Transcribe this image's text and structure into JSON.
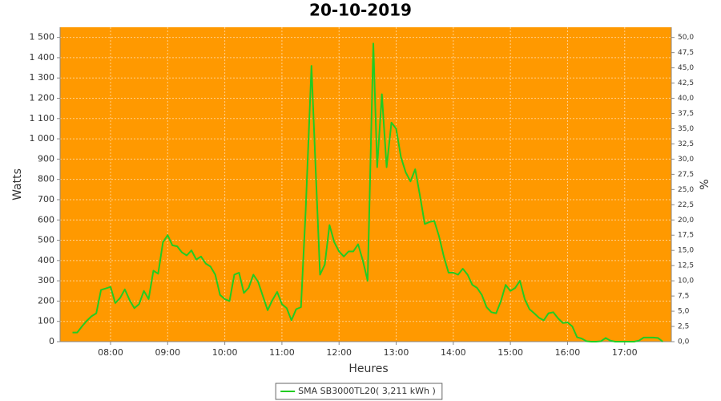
{
  "chart_data": {
    "type": "line",
    "title": "20-10-2019",
    "x_label": "Heures",
    "y_label": "Watts",
    "y2_label": "%",
    "plot_background": "#ff9900",
    "grid": true,
    "x": [
      "07:20",
      "07:25",
      "07:30",
      "07:35",
      "07:40",
      "07:45",
      "07:50",
      "07:55",
      "08:00",
      "08:05",
      "08:10",
      "08:15",
      "08:20",
      "08:25",
      "08:30",
      "08:35",
      "08:40",
      "08:45",
      "08:50",
      "08:55",
      "09:00",
      "09:05",
      "09:10",
      "09:15",
      "09:20",
      "09:25",
      "09:30",
      "09:35",
      "09:40",
      "09:45",
      "09:50",
      "09:55",
      "10:00",
      "10:05",
      "10:10",
      "10:15",
      "10:20",
      "10:25",
      "10:30",
      "10:35",
      "10:40",
      "10:45",
      "10:50",
      "10:55",
      "11:00",
      "11:05",
      "11:10",
      "11:15",
      "11:20",
      "11:25",
      "11:31",
      "11:35",
      "11:40",
      "11:45",
      "11:50",
      "11:55",
      "12:00",
      "12:05",
      "12:10",
      "12:15",
      "12:20",
      "12:25",
      "12:30",
      "12:36",
      "12:40",
      "12:45",
      "12:50",
      "12:55",
      "13:00",
      "13:05",
      "13:10",
      "13:15",
      "13:20",
      "13:25",
      "13:30",
      "13:35",
      "13:40",
      "13:45",
      "13:50",
      "13:55",
      "14:00",
      "14:05",
      "14:10",
      "14:15",
      "14:20",
      "14:25",
      "14:30",
      "14:35",
      "14:40",
      "14:45",
      "14:50",
      "14:55",
      "15:00",
      "15:05",
      "15:10",
      "15:15",
      "15:20",
      "15:25",
      "15:30",
      "15:35",
      "15:40",
      "15:45",
      "15:50",
      "15:55",
      "16:00",
      "16:05",
      "16:10",
      "16:15",
      "16:20",
      "16:25",
      "16:30",
      "16:35",
      "16:40",
      "16:45",
      "16:50",
      "16:55",
      "17:00",
      "17:05",
      "17:10",
      "17:15",
      "17:20",
      "17:25",
      "17:30",
      "17:35",
      "17:40"
    ],
    "series": [
      {
        "name": "SMA SB3000TL20( 3,211 kWh )",
        "color": "#22cc22",
        "values": [
          45,
          45,
          75,
          103,
          125,
          140,
          255,
          262,
          270,
          190,
          215,
          258,
          205,
          165,
          185,
          250,
          210,
          350,
          335,
          490,
          525,
          475,
          470,
          440,
          425,
          450,
          405,
          420,
          385,
          370,
          330,
          230,
          210,
          200,
          330,
          340,
          240,
          265,
          330,
          295,
          225,
          155,
          205,
          245,
          185,
          165,
          105,
          160,
          170,
          650,
          1360,
          900,
          330,
          380,
          575,
          490,
          445,
          420,
          445,
          445,
          480,
          400,
          300,
          1470,
          860,
          1220,
          860,
          1080,
          1050,
          910,
          835,
          790,
          850,
          720,
          580,
          590,
          595,
          520,
          420,
          340,
          340,
          330,
          360,
          330,
          280,
          265,
          230,
          170,
          145,
          140,
          200,
          280,
          250,
          265,
          300,
          210,
          160,
          140,
          118,
          105,
          140,
          145,
          115,
          92,
          95,
          75,
          22,
          15,
          2,
          0,
          0,
          2,
          18,
          5,
          0,
          0,
          0,
          0,
          0,
          5,
          20,
          20,
          20,
          18,
          0
        ]
      }
    ],
    "xlim": [
      "07:07",
      "17:49"
    ],
    "xticks": [
      "08:00",
      "09:00",
      "10:00",
      "11:00",
      "12:00",
      "13:00",
      "14:00",
      "15:00",
      "16:00",
      "17:00"
    ],
    "ylim": [
      0,
      1550
    ],
    "yticks": [
      0,
      100,
      200,
      300,
      400,
      500,
      600,
      700,
      800,
      900,
      {
        "value": 1000,
        "label": "1 000"
      },
      {
        "value": 1100,
        "label": "1 100"
      },
      {
        "value": 1200,
        "label": "1 200"
      },
      {
        "value": 1300,
        "label": "1 300"
      },
      {
        "value": 1400,
        "label": "1 400"
      },
      {
        "value": 1500,
        "label": "1 500"
      }
    ],
    "y2lim": [
      0,
      51.67
    ],
    "y2ticks": [
      {
        "value": 0,
        "label": "0,0"
      },
      {
        "value": 2.5,
        "label": "2,5"
      },
      {
        "value": 5,
        "label": "5,0"
      },
      {
        "value": 7.5,
        "label": "7,5"
      },
      {
        "value": 10,
        "label": "10,0"
      },
      {
        "value": 12.5,
        "label": "12,5"
      },
      {
        "value": 15,
        "label": "15,0"
      },
      {
        "value": 17.5,
        "label": "17,5"
      },
      {
        "value": 20,
        "label": "20,0"
      },
      {
        "value": 22.5,
        "label": "22,5"
      },
      {
        "value": 25,
        "label": "25,0"
      },
      {
        "value": 27.5,
        "label": "27,5"
      },
      {
        "value": 30,
        "label": "30,0"
      },
      {
        "value": 32.5,
        "label": "32,5"
      },
      {
        "value": 35,
        "label": "35,0"
      },
      {
        "value": 37.5,
        "label": "37,5"
      },
      {
        "value": 40,
        "label": "40,0"
      },
      {
        "value": 42.5,
        "label": "42,5"
      },
      {
        "value": 45,
        "label": "45,0"
      },
      {
        "value": 47.5,
        "label": "47,5"
      },
      {
        "value": 50,
        "label": "50,0"
      }
    ]
  }
}
